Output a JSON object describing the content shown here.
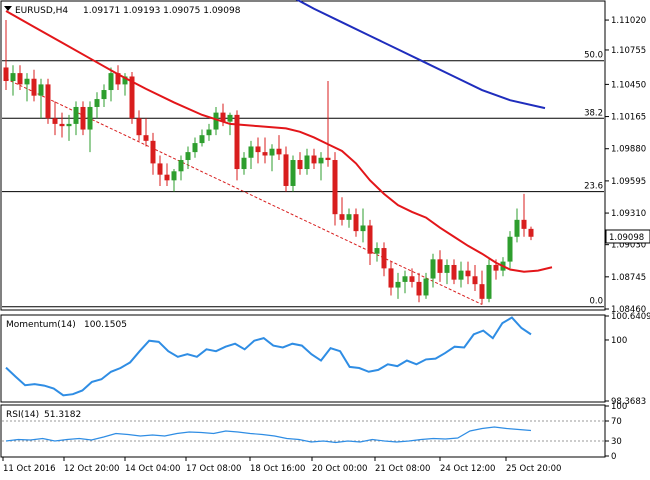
{
  "header": {
    "symbol": "EURUSD,H4",
    "quote": "1.09171 1.09193 1.09075 1.09098"
  },
  "colors": {
    "bull": "#2e9e2e",
    "bear": "#d81e1e",
    "ma_fast": "#e3161a",
    "ma_slow": "#1f2dbd",
    "indicator": "#2f8de4",
    "fib_line": "#000000",
    "trend_line": "#d81e1e",
    "current_price_bg": "#ffffff"
  },
  "chart_data": [
    {
      "type": "candlestick",
      "title": "EURUSD,H4",
      "x_tick_labels": [
        "11 Oct 2016",
        "12 Oct 20:00",
        "14 Oct 04:00",
        "17 Oct 08:00",
        "18 Oct 16:00",
        "20 Oct 00:00",
        "21 Oct 08:00",
        "24 Oct 12:00",
        "25 Oct 20:00"
      ],
      "y_tick_labels": [
        "1.11020",
        "1.10755",
        "1.10450",
        "1.10165",
        "1.09880",
        "1.09595",
        "1.09310",
        "1.09030",
        "1.08745",
        "1.08460"
      ],
      "ylim": [
        1.0846,
        1.1118
      ],
      "current_price": "1.09098",
      "fibonacci_levels": [
        {
          "label": "50.0",
          "price": 1.1066
        },
        {
          "label": "38.2",
          "price": 1.1015
        },
        {
          "label": "23.6",
          "price": 1.095
        },
        {
          "label": "0.0",
          "price": 1.0848
        }
      ],
      "candles": [
        {
          "o": 1.106,
          "h": 1.1102,
          "l": 1.104,
          "c": 1.1048
        },
        {
          "o": 1.1048,
          "h": 1.1062,
          "l": 1.1035,
          "c": 1.1055
        },
        {
          "o": 1.1055,
          "h": 1.1062,
          "l": 1.104,
          "c": 1.1045
        },
        {
          "o": 1.1045,
          "h": 1.1055,
          "l": 1.103,
          "c": 1.105
        },
        {
          "o": 1.105,
          "h": 1.1058,
          "l": 1.103,
          "c": 1.1035
        },
        {
          "o": 1.1035,
          "h": 1.105,
          "l": 1.1015,
          "c": 1.1045
        },
        {
          "o": 1.1045,
          "h": 1.105,
          "l": 1.101,
          "c": 1.1015
        },
        {
          "o": 1.1015,
          "h": 1.103,
          "l": 1.1,
          "c": 1.101
        },
        {
          "o": 1.101,
          "h": 1.102,
          "l": 1.0998,
          "c": 1.1008
        },
        {
          "o": 1.1008,
          "h": 1.1018,
          "l": 1.0995,
          "c": 1.101
        },
        {
          "o": 1.101,
          "h": 1.103,
          "l": 1.1,
          "c": 1.1025
        },
        {
          "o": 1.1025,
          "h": 1.103,
          "l": 1.1,
          "c": 1.1005
        },
        {
          "o": 1.1005,
          "h": 1.103,
          "l": 1.0985,
          "c": 1.1025
        },
        {
          "o": 1.1025,
          "h": 1.1038,
          "l": 1.1015,
          "c": 1.1032
        },
        {
          "o": 1.1032,
          "h": 1.1045,
          "l": 1.1025,
          "c": 1.104
        },
        {
          "o": 1.104,
          "h": 1.106,
          "l": 1.103,
          "c": 1.1055
        },
        {
          "o": 1.1055,
          "h": 1.1062,
          "l": 1.104,
          "c": 1.1045
        },
        {
          "o": 1.1045,
          "h": 1.1055,
          "l": 1.1035,
          "c": 1.1052
        },
        {
          "o": 1.1052,
          "h": 1.1056,
          "l": 1.101,
          "c": 1.1015
        },
        {
          "o": 1.1015,
          "h": 1.1022,
          "l": 1.0995,
          "c": 1.1
        },
        {
          "o": 1.1,
          "h": 1.1015,
          "l": 1.099,
          "c": 1.0995
        },
        {
          "o": 1.0995,
          "h": 1.1002,
          "l": 1.0965,
          "c": 1.0975
        },
        {
          "o": 1.0975,
          "h": 1.0982,
          "l": 1.0955,
          "c": 1.0965
        },
        {
          "o": 1.0965,
          "h": 1.0975,
          "l": 1.0955,
          "c": 1.096
        },
        {
          "o": 1.096,
          "h": 1.097,
          "l": 1.095,
          "c": 1.0968
        },
        {
          "o": 1.0968,
          "h": 1.0982,
          "l": 1.096,
          "c": 1.0978
        },
        {
          "o": 1.0978,
          "h": 1.099,
          "l": 1.097,
          "c": 1.0985
        },
        {
          "o": 1.0985,
          "h": 1.0998,
          "l": 1.098,
          "c": 1.0993
        },
        {
          "o": 1.0993,
          "h": 1.1005,
          "l": 1.099,
          "c": 1.1
        },
        {
          "o": 1.1,
          "h": 1.101,
          "l": 1.0995,
          "c": 1.1005
        },
        {
          "o": 1.1005,
          "h": 1.1025,
          "l": 1.1,
          "c": 1.102
        },
        {
          "o": 1.102,
          "h": 1.1028,
          "l": 1.1008,
          "c": 1.1012
        },
        {
          "o": 1.1012,
          "h": 1.102,
          "l": 1.1,
          "c": 1.1018
        },
        {
          "o": 1.1018,
          "h": 1.1022,
          "l": 1.096,
          "c": 1.097
        },
        {
          "o": 1.097,
          "h": 1.0985,
          "l": 1.0965,
          "c": 1.098
        },
        {
          "o": 1.098,
          "h": 1.0995,
          "l": 1.097,
          "c": 1.099
        },
        {
          "o": 1.099,
          "h": 1.0998,
          "l": 1.0975,
          "c": 1.0985
        },
        {
          "o": 1.0985,
          "h": 1.0998,
          "l": 1.0975,
          "c": 1.0982
        },
        {
          "o": 1.0982,
          "h": 1.0992,
          "l": 1.0968,
          "c": 1.0988
        },
        {
          "o": 1.0988,
          "h": 1.1,
          "l": 1.0978,
          "c": 1.0983
        },
        {
          "o": 1.0983,
          "h": 1.099,
          "l": 1.095,
          "c": 1.0955
        },
        {
          "o": 1.0955,
          "h": 1.0982,
          "l": 1.095,
          "c": 1.0978
        },
        {
          "o": 1.0978,
          "h": 1.0985,
          "l": 1.0965,
          "c": 1.097
        },
        {
          "o": 1.097,
          "h": 1.0988,
          "l": 1.0965,
          "c": 1.0982
        },
        {
          "o": 1.0982,
          "h": 1.0988,
          "l": 1.097,
          "c": 1.0975
        },
        {
          "o": 1.0975,
          "h": 1.0985,
          "l": 1.096,
          "c": 1.098
        },
        {
          "o": 1.098,
          "h": 1.1048,
          "l": 1.0972,
          "c": 1.0978
        },
        {
          "o": 1.0978,
          "h": 1.0985,
          "l": 1.092,
          "c": 1.093
        },
        {
          "o": 1.093,
          "h": 1.0945,
          "l": 1.092,
          "c": 1.0925
        },
        {
          "o": 1.0925,
          "h": 1.0935,
          "l": 1.0918,
          "c": 1.093
        },
        {
          "o": 1.093,
          "h": 1.0935,
          "l": 1.091,
          "c": 1.0915
        },
        {
          "o": 1.0915,
          "h": 1.0935,
          "l": 1.0905,
          "c": 1.092
        },
        {
          "o": 1.092,
          "h": 1.0925,
          "l": 1.0885,
          "c": 1.0895
        },
        {
          "o": 1.0895,
          "h": 1.0905,
          "l": 1.0888,
          "c": 1.09
        },
        {
          "o": 1.09,
          "h": 1.0905,
          "l": 1.0875,
          "c": 1.0882
        },
        {
          "o": 1.0882,
          "h": 1.0888,
          "l": 1.0858,
          "c": 1.0865
        },
        {
          "o": 1.0865,
          "h": 1.0878,
          "l": 1.0855,
          "c": 1.087
        },
        {
          "o": 1.087,
          "h": 1.088,
          "l": 1.086,
          "c": 1.0875
        },
        {
          "o": 1.0875,
          "h": 1.0882,
          "l": 1.0865,
          "c": 1.087
        },
        {
          "o": 1.087,
          "h": 1.0878,
          "l": 1.0852,
          "c": 1.0858
        },
        {
          "o": 1.0858,
          "h": 1.0878,
          "l": 1.0855,
          "c": 1.0873
        },
        {
          "o": 1.0873,
          "h": 1.0895,
          "l": 1.0865,
          "c": 1.089
        },
        {
          "o": 1.089,
          "h": 1.0898,
          "l": 1.087,
          "c": 1.0878
        },
        {
          "o": 1.0878,
          "h": 1.089,
          "l": 1.0868,
          "c": 1.0885
        },
        {
          "o": 1.0885,
          "h": 1.089,
          "l": 1.0868,
          "c": 1.0872
        },
        {
          "o": 1.0872,
          "h": 1.0888,
          "l": 1.0865,
          "c": 1.088
        },
        {
          "o": 1.088,
          "h": 1.0888,
          "l": 1.0868,
          "c": 1.0875
        },
        {
          "o": 1.0875,
          "h": 1.0885,
          "l": 1.0862,
          "c": 1.0868
        },
        {
          "o": 1.0868,
          "h": 1.088,
          "l": 1.085,
          "c": 1.0855
        },
        {
          "o": 1.0855,
          "h": 1.089,
          "l": 1.0852,
          "c": 1.0885
        },
        {
          "o": 1.0885,
          "h": 1.089,
          "l": 1.0872,
          "c": 1.088
        },
        {
          "o": 1.088,
          "h": 1.0892,
          "l": 1.0875,
          "c": 1.0888
        },
        {
          "o": 1.0888,
          "h": 1.0915,
          "l": 1.0882,
          "c": 1.091
        },
        {
          "o": 1.091,
          "h": 1.0935,
          "l": 1.0905,
          "c": 1.0925
        },
        {
          "o": 1.0925,
          "h": 1.0948,
          "l": 1.091,
          "c": 1.0917
        },
        {
          "o": 1.0917,
          "h": 1.0919,
          "l": 1.0907,
          "c": 1.091
        }
      ],
      "ma_fast": [
        1.111,
        1.1096,
        1.1082,
        1.1068,
        1.1054,
        1.1041,
        1.1029,
        1.1018,
        1.101,
        1.1008,
        1.1006,
        1.1003,
        1.0998,
        1.0992,
        1.0986,
        1.0975,
        1.096,
        1.0948,
        1.0938,
        1.0932,
        1.0927,
        1.0918,
        1.091,
        1.0902,
        1.0895,
        1.0887,
        1.0881,
        1.0879,
        1.088,
        1.0883
      ],
      "ma_fast_x": [
        0,
        4,
        8,
        12,
        16,
        20,
        24,
        28,
        32,
        36,
        40,
        42,
        44,
        46,
        48,
        50,
        52,
        54,
        56,
        58,
        60,
        62,
        64,
        66,
        68,
        70,
        72,
        74,
        76,
        78
      ],
      "ma_slow": [
        1.1122,
        1.1112,
        1.11,
        1.1088,
        1.1076,
        1.1064,
        1.1052,
        1.104,
        1.1031,
        1.1024
      ],
      "ma_slow_x": [
        41,
        44,
        48,
        52,
        56,
        60,
        64,
        68,
        72,
        77
      ],
      "trend_line": {
        "x": [
          0,
          68
        ],
        "price": [
          1.105,
          1.085
        ]
      }
    },
    {
      "type": "line",
      "title": "Momentum(14)",
      "last_value": "100.1505",
      "y_tick_labels": [
        "100.6409",
        "100",
        "98.3683"
      ],
      "ylim": [
        98.3683,
        100.6409
      ],
      "values": [
        99.26,
        99.02,
        98.79,
        98.82,
        98.78,
        98.7,
        98.52,
        98.55,
        98.65,
        98.88,
        98.95,
        99.15,
        99.25,
        99.4,
        99.7,
        99.98,
        99.95,
        99.7,
        99.55,
        99.62,
        99.55,
        99.75,
        99.7,
        99.82,
        99.9,
        99.75,
        99.98,
        100.05,
        99.85,
        99.8,
        99.9,
        99.85,
        99.62,
        99.45,
        99.78,
        99.7,
        99.28,
        99.25,
        99.15,
        99.2,
        99.35,
        99.3,
        99.45,
        99.35,
        99.48,
        99.5,
        99.65,
        99.82,
        99.8,
        100.15,
        100.25,
        100.05,
        100.45,
        100.6,
        100.32,
        100.15
      ]
    },
    {
      "type": "line",
      "title": "RSI(14)",
      "last_value": "51.3182",
      "y_tick_labels": [
        "100",
        "70",
        "30",
        "0"
      ],
      "ylim": [
        0,
        100
      ],
      "levels": [
        70,
        30
      ],
      "values": [
        30,
        33,
        32,
        35,
        30,
        33,
        35,
        32,
        38,
        45,
        43,
        40,
        42,
        40,
        45,
        48,
        47,
        45,
        50,
        48,
        45,
        43,
        40,
        35,
        33,
        28,
        30,
        27,
        30,
        28,
        33,
        30,
        28,
        30,
        33,
        35,
        34,
        36,
        50,
        55,
        58,
        55,
        53,
        51
      ]
    }
  ],
  "date_labels": [
    "11 Oct 2016",
    "12 Oct 20:00",
    "14 Oct 04:00",
    "17 Oct 08:00",
    "18 Oct 16:00",
    "20 Oct 00:00",
    "21 Oct 08:00",
    "24 Oct 12:00",
    "25 Oct 20:00"
  ]
}
